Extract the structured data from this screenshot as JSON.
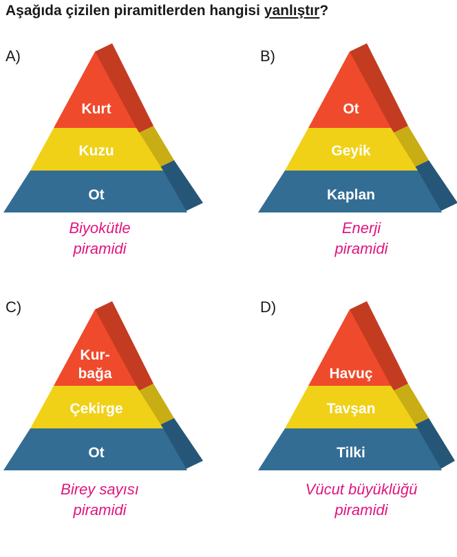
{
  "question": {
    "prefix": "Aşağıda çizilen piramitlerden hangisi ",
    "underlined": "yanlıştır",
    "suffix": "?"
  },
  "colors": {
    "red": "#ef4a2b",
    "red_side": "#c33b21",
    "yellow": "#f0d117",
    "yellow_side": "#c9ad14",
    "blue": "#336d94",
    "blue_side": "#265677",
    "caption": "#e0147f"
  },
  "options": [
    {
      "letter": "A)",
      "levels": {
        "top": [
          "Kurt"
        ],
        "middle": "Kuzu",
        "bottom": "Ot"
      },
      "caption": [
        "Biyokütle",
        "piramidi"
      ]
    },
    {
      "letter": "B)",
      "levels": {
        "top": [
          "Ot"
        ],
        "middle": "Geyik",
        "bottom": "Kaplan"
      },
      "caption": [
        "Enerji",
        "piramidi"
      ]
    },
    {
      "letter": "C)",
      "levels": {
        "top": [
          "Kur-",
          "bağa"
        ],
        "middle": "Çekirge",
        "bottom": "Ot"
      },
      "caption": [
        "Birey sayısı",
        "piramidi"
      ]
    },
    {
      "letter": "D)",
      "levels": {
        "top": [
          "Havuç"
        ],
        "middle": "Tavşan",
        "bottom": "Tilki"
      },
      "caption": [
        "Vücut büyüklüğü",
        "piramidi"
      ]
    }
  ]
}
